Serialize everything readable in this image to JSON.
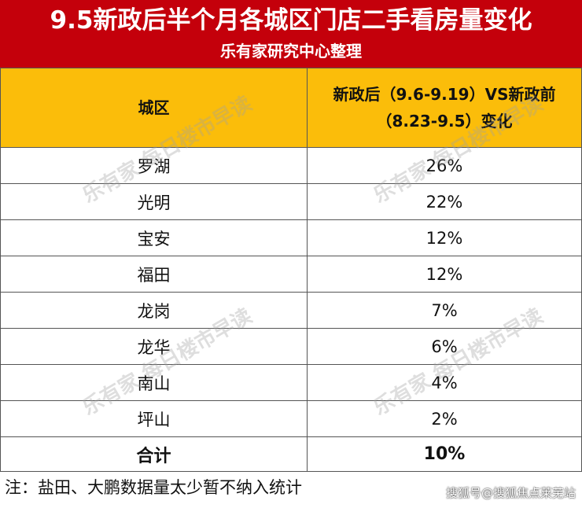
{
  "title": "9.5新政后半个月各城区门店二手看房量变化",
  "subtitle": "乐有家研究中心整理",
  "table": {
    "headers": [
      "城区",
      "新政后（9.6-9.19）VS新政前（8.23-9.5）变化"
    ],
    "header_line1": "新政后（9.6-9.19）VS新政前",
    "header_line2": "（8.23-9.5）变化",
    "rows": [
      {
        "district": "罗湖",
        "change": "26%"
      },
      {
        "district": "光明",
        "change": "22%"
      },
      {
        "district": "宝安",
        "change": "12%"
      },
      {
        "district": "福田",
        "change": "12%"
      },
      {
        "district": "龙岗",
        "change": "7%"
      },
      {
        "district": "龙华",
        "change": "6%"
      },
      {
        "district": "南山",
        "change": "4%"
      },
      {
        "district": "坪山",
        "change": "2%"
      }
    ],
    "total": {
      "label": "合计",
      "change": "10%"
    }
  },
  "note": "注：盐田、大鹏数据量太少暂不纳入统计",
  "credit": "搜狐号@搜狐焦点莱芜站",
  "watermark": "乐有家 每日楼市早读",
  "colors": {
    "title_bg": "#c4000b",
    "header_bg": "#fbbd0a"
  }
}
